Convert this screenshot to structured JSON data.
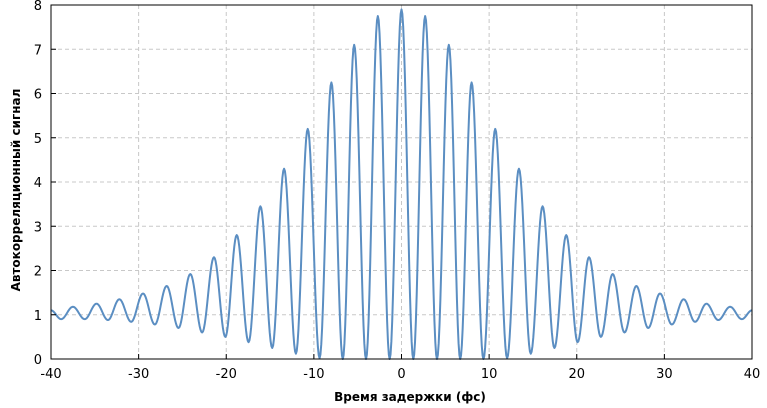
{
  "chart_data": {
    "type": "line",
    "title": "",
    "xlabel": "Время задержки (фс)",
    "ylabel": "Автокорреляционный сигнал",
    "xlim": [
      -40,
      40
    ],
    "ylim": [
      0,
      8
    ],
    "xticks": [
      -40,
      -30,
      -20,
      -10,
      0,
      10,
      20,
      30,
      40
    ],
    "yticks": [
      0,
      1,
      2,
      3,
      4,
      5,
      6,
      7,
      8
    ],
    "grid": true,
    "legend": "none",
    "series": [
      {
        "color": "#5b8ec2",
        "fringe_period": 2.68,
        "peak_positions": [
          -37.5,
          -34.8,
          -32.2,
          -29.5,
          -26.8,
          -24.1,
          -21.4,
          -18.8,
          -16.1,
          -13.4,
          -10.7,
          -8.0,
          -5.4,
          -2.7,
          0,
          2.7,
          5.4,
          8.0,
          10.7,
          13.4,
          16.1,
          18.8,
          21.4,
          24.1,
          26.8,
          29.5,
          32.2,
          34.8,
          37.5
        ],
        "peak_values": [
          1.18,
          1.25,
          1.35,
          1.48,
          1.65,
          1.92,
          2.3,
          2.8,
          3.45,
          4.3,
          5.2,
          6.25,
          7.1,
          7.75,
          7.9,
          7.75,
          7.1,
          6.25,
          5.2,
          4.3,
          3.45,
          2.8,
          2.3,
          1.92,
          1.65,
          1.48,
          1.35,
          1.25,
          1.18
        ],
        "trough_values": [
          0.9,
          0.88,
          0.84,
          0.78,
          0.7,
          0.6,
          0.5,
          0.38,
          0.25,
          0.12,
          0.02,
          0.0,
          0.0,
          0.0,
          0.0,
          0.0,
          0.0,
          0.0,
          0.02,
          0.12,
          0.25,
          0.38,
          0.5,
          0.6,
          0.7,
          0.78,
          0.84,
          0.88,
          0.9
        ],
        "edge_values": [
          1.1,
          1.1
        ]
      }
    ]
  }
}
